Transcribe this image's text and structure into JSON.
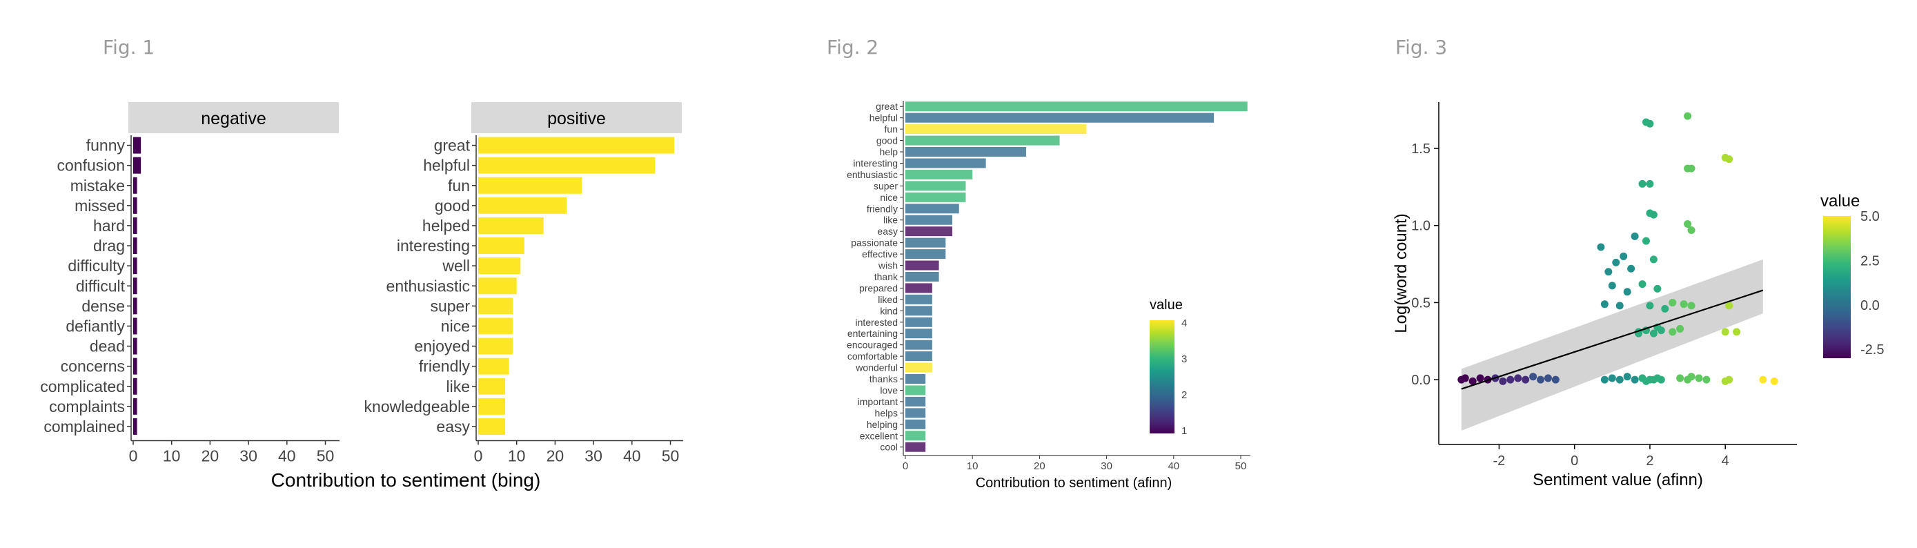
{
  "figures": {
    "fig1": "Fig. 1",
    "fig2": "Fig. 2",
    "fig3": "Fig. 3"
  },
  "colors": {
    "yellow": "#fde725",
    "purple": "#440154",
    "strip": "#d9d9d9"
  },
  "chart_data": [
    {
      "type": "bar",
      "orientation": "horizontal",
      "facets": [
        "negative",
        "positive"
      ],
      "xlabel": "Contribution to sentiment (bing)",
      "xlim": [
        0,
        53
      ],
      "xticks": [
        0,
        10,
        20,
        30,
        40,
        50
      ],
      "panels": [
        {
          "name": "negative",
          "color": "#440154",
          "categories": [
            "funny",
            "confusion",
            "mistake",
            "missed",
            "hard",
            "drag",
            "difficulty",
            "difficult",
            "dense",
            "defiantly",
            "dead",
            "concerns",
            "complicated",
            "complaints",
            "complained"
          ],
          "values": [
            2,
            2,
            1,
            1,
            1,
            1,
            1,
            1,
            1,
            1,
            1,
            1,
            1,
            1,
            1
          ]
        },
        {
          "name": "positive",
          "color": "#fde725",
          "categories": [
            "great",
            "helpful",
            "fun",
            "good",
            "helped",
            "interesting",
            "well",
            "enthusiastic",
            "super",
            "nice",
            "enjoyed",
            "friendly",
            "like",
            "knowledgeable",
            "easy"
          ],
          "values": [
            51,
            46,
            27,
            23,
            17,
            12,
            11,
            10,
            9,
            9,
            9,
            8,
            7,
            7,
            7
          ]
        }
      ]
    },
    {
      "type": "bar",
      "orientation": "horizontal",
      "xlabel": "Contribution to sentiment (afinn)",
      "xlim": [
        0,
        52
      ],
      "xticks": [
        0,
        10,
        20,
        30,
        40,
        50
      ],
      "legend": {
        "title": "value",
        "ticks": [
          "1",
          "2",
          "3",
          "4"
        ],
        "range": [
          1,
          4
        ],
        "placement": "right"
      },
      "categories": [
        "great",
        "helpful",
        "fun",
        "good",
        "help",
        "interesting",
        "enthusiastic",
        "super",
        "nice",
        "friendly",
        "like",
        "easy",
        "passionate",
        "effective",
        "wish",
        "thank",
        "prepared",
        "liked",
        "kind",
        "interested",
        "entertaining",
        "encouraged",
        "comfortable",
        "wonderful",
        "thanks",
        "love",
        "important",
        "helps",
        "helping",
        "excellent",
        "cool"
      ],
      "values": [
        51,
        46,
        27,
        23,
        18,
        12,
        10,
        9,
        9,
        8,
        7,
        7,
        6,
        6,
        5,
        5,
        4,
        4,
        4,
        4,
        4,
        4,
        4,
        4,
        3,
        3,
        3,
        3,
        3,
        3,
        3
      ],
      "color_values": [
        3,
        2,
        4,
        3,
        2,
        2,
        3,
        3,
        3,
        2,
        2,
        1,
        2,
        2,
        1,
        2,
        1,
        2,
        2,
        2,
        2,
        2,
        2,
        4,
        2,
        3,
        2,
        2,
        2,
        3,
        1
      ]
    },
    {
      "type": "scatter",
      "xlabel": "Sentiment value (afinn)",
      "ylabel": "Log(word count)",
      "xlim": [
        -3.6,
        5.9
      ],
      "ylim": [
        -0.42,
        1.8
      ],
      "xticks": [
        "-2",
        "0",
        "2",
        "4"
      ],
      "yticks": [
        "0.0",
        "0.5",
        "1.0",
        "1.5"
      ],
      "legend": {
        "title": "value",
        "ticks": [
          "5.0",
          "2.5",
          "0.0",
          "-2.5"
        ],
        "range": [
          -3,
          5
        ],
        "placement": "right"
      },
      "fit": {
        "type": "linear",
        "x": [
          -3,
          5
        ],
        "y": [
          -0.06,
          0.58
        ],
        "ci_lower": [
          -0.33,
          0.43
        ],
        "ci_upper": [
          0.07,
          0.78
        ]
      },
      "points": [
        [
          -3.0,
          0.0,
          -3
        ],
        [
          -2.9,
          0.01,
          -3
        ],
        [
          -2.7,
          -0.01,
          -3
        ],
        [
          -2.5,
          0.01,
          -3
        ],
        [
          -2.3,
          0.0,
          -3
        ],
        [
          -2.1,
          0.01,
          -2
        ],
        [
          -1.9,
          -0.01,
          -2
        ],
        [
          -1.7,
          0.0,
          -2
        ],
        [
          -1.5,
          0.01,
          -2
        ],
        [
          -1.3,
          0.0,
          -2
        ],
        [
          -1.1,
          0.02,
          -1
        ],
        [
          -0.9,
          0.0,
          -1
        ],
        [
          -0.7,
          0.01,
          -1
        ],
        [
          -0.5,
          0.0,
          -1
        ],
        [
          0.8,
          0.0,
          1
        ],
        [
          1.0,
          0.01,
          1
        ],
        [
          1.2,
          0.0,
          1
        ],
        [
          1.4,
          0.02,
          1
        ],
        [
          1.6,
          0.0,
          1
        ],
        [
          1.8,
          0.01,
          2
        ],
        [
          1.9,
          -0.01,
          2
        ],
        [
          2.0,
          0.0,
          2
        ],
        [
          2.1,
          0.0,
          2
        ],
        [
          2.2,
          0.01,
          2
        ],
        [
          2.3,
          0.0,
          2
        ],
        [
          2.8,
          0.01,
          3
        ],
        [
          3.0,
          0.0,
          3
        ],
        [
          3.1,
          0.02,
          3
        ],
        [
          3.3,
          0.01,
          3
        ],
        [
          3.5,
          0.0,
          3
        ],
        [
          4.0,
          -0.01,
          4
        ],
        [
          4.1,
          0.0,
          4
        ],
        [
          5.0,
          0.0,
          5
        ],
        [
          5.3,
          -0.01,
          5
        ],
        [
          0.7,
          0.86,
          1
        ],
        [
          0.8,
          0.49,
          1
        ],
        [
          0.9,
          0.7,
          1
        ],
        [
          1.0,
          0.61,
          1
        ],
        [
          1.1,
          0.76,
          1
        ],
        [
          1.2,
          0.48,
          1
        ],
        [
          1.3,
          0.8,
          1
        ],
        [
          1.4,
          0.57,
          1
        ],
        [
          1.5,
          0.72,
          1
        ],
        [
          1.6,
          0.93,
          1
        ],
        [
          1.7,
          0.3,
          2
        ],
        [
          1.8,
          0.62,
          2
        ],
        [
          1.9,
          0.9,
          2
        ],
        [
          2.0,
          0.48,
          2
        ],
        [
          2.1,
          0.78,
          2
        ],
        [
          2.2,
          0.59,
          2
        ],
        [
          2.3,
          0.32,
          2
        ],
        [
          2.4,
          0.46,
          2
        ],
        [
          1.9,
          1.67,
          2
        ],
        [
          2.0,
          1.66,
          2
        ],
        [
          1.8,
          1.27,
          2
        ],
        [
          2.0,
          1.27,
          2
        ],
        [
          2.0,
          1.08,
          2
        ],
        [
          2.1,
          1.07,
          2
        ],
        [
          3.0,
          1.71,
          3
        ],
        [
          3.0,
          1.37,
          3
        ],
        [
          3.1,
          1.37,
          3
        ],
        [
          3.0,
          1.01,
          3
        ],
        [
          3.1,
          0.97,
          3
        ],
        [
          2.9,
          0.49,
          3
        ],
        [
          3.1,
          0.48,
          3
        ],
        [
          2.6,
          0.5,
          3
        ],
        [
          2.6,
          0.31,
          3
        ],
        [
          2.8,
          0.33,
          3
        ],
        [
          4.0,
          1.44,
          4
        ],
        [
          4.1,
          1.43,
          4
        ],
        [
          4.0,
          0.31,
          4
        ],
        [
          4.3,
          0.31,
          4
        ],
        [
          4.1,
          0.48,
          4
        ],
        [
          1.7,
          0.31,
          2
        ],
        [
          1.9,
          0.32,
          2
        ],
        [
          2.1,
          0.3,
          2
        ],
        [
          2.2,
          0.34,
          2
        ]
      ]
    }
  ]
}
